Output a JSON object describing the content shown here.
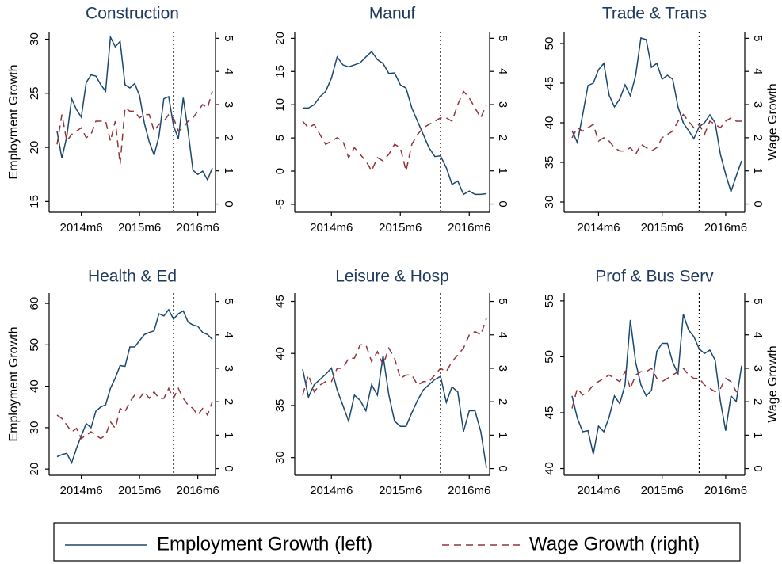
{
  "chart_data": [
    {
      "type": "line",
      "title": "Construction",
      "ylabel": "Employment Growth",
      "x": [
        "2014m1",
        "2014m2",
        "2014m3",
        "2014m4",
        "2014m5",
        "2014m6",
        "2014m7",
        "2014m8",
        "2014m9",
        "2014m10",
        "2014m11",
        "2014m12",
        "2015m1",
        "2015m2",
        "2015m3",
        "2015m4",
        "2015m5",
        "2015m6",
        "2015m7",
        "2015m8",
        "2015m9",
        "2015m10",
        "2015m11",
        "2015m12",
        "2016m1",
        "2016m2",
        "2016m3",
        "2016m4",
        "2016m5",
        "2016m6",
        "2016m7",
        "2016m8",
        "2016m9"
      ],
      "xticks": [
        "2014m6",
        "2015m6",
        "2016m6"
      ],
      "vline": "2016m1",
      "ylim": [
        14,
        30.7
      ],
      "yticks": [
        15,
        20,
        25,
        30
      ],
      "y2lim": [
        -0.25,
        5.2
      ],
      "y2ticks": [
        0,
        1,
        2,
        3,
        4,
        5
      ],
      "series": [
        {
          "name": "Employment Growth (left)",
          "color": "#1a476f",
          "linestyle": "solid",
          "values": [
            21.5,
            19,
            21,
            24.5,
            23.5,
            22.8,
            26,
            26.7,
            26.6,
            25.8,
            25.2,
            30.2,
            29.3,
            29.8,
            25.8,
            25.5,
            25.9,
            24.8,
            22.2,
            20.5,
            19.3,
            21,
            24.5,
            24.7,
            22,
            20.8,
            24.6,
            21.5,
            17.9,
            17.5,
            17.8,
            17,
            18.1
          ]
        },
        {
          "name": "Wage Growth (right)",
          "color": "#90353b",
          "linestyle": "dashed",
          "axis": "y2",
          "values": [
            1.8,
            2.7,
            1.9,
            2.1,
            2.2,
            2.3,
            2.0,
            2.1,
            2.5,
            2.5,
            2.5,
            1.9,
            2.5,
            1.2,
            2.9,
            2.8,
            2.8,
            2.6,
            2.7,
            2.7,
            2.2,
            2.4,
            2.5,
            2.7,
            2.6,
            2.2,
            2.3,
            2.5,
            2.6,
            2.8,
            3.0,
            2.9,
            3.4
          ]
        }
      ]
    },
    {
      "type": "line",
      "title": "Manuf",
      "x": [
        "2014m1",
        "2014m2",
        "2014m3",
        "2014m4",
        "2014m5",
        "2014m6",
        "2014m7",
        "2014m8",
        "2014m9",
        "2014m10",
        "2014m11",
        "2014m12",
        "2015m1",
        "2015m2",
        "2015m3",
        "2015m4",
        "2015m5",
        "2015m6",
        "2015m7",
        "2015m8",
        "2015m9",
        "2015m10",
        "2015m11",
        "2015m12",
        "2016m1",
        "2016m2",
        "2016m3",
        "2016m4",
        "2016m5",
        "2016m6",
        "2016m7",
        "2016m8",
        "2016m9"
      ],
      "xticks": [
        "2014m6",
        "2015m6",
        "2016m6"
      ],
      "vline": "2016m1",
      "ylim": [
        -6.2,
        21
      ],
      "yticks": [
        -5,
        0,
        5,
        10,
        15,
        20
      ],
      "y2lim": [
        -0.25,
        5.2
      ],
      "y2ticks": [
        0,
        1,
        2,
        3,
        4,
        5
      ],
      "series": [
        {
          "color": "#1a476f",
          "linestyle": "solid",
          "values": [
            9.5,
            9.5,
            10,
            11.2,
            12,
            14,
            17.2,
            16,
            15.7,
            16,
            16.3,
            17.2,
            18,
            16.8,
            16.2,
            14.7,
            14.8,
            13,
            12.5,
            9.5,
            7.5,
            5.5,
            3.5,
            2.2,
            2.3,
            0.5,
            -2,
            -1.5,
            -3.5,
            -3,
            -3.5,
            -3.5,
            -3.4
          ]
        },
        {
          "color": "#90353b",
          "linestyle": "dashed",
          "axis": "y2",
          "values": [
            2.5,
            2.3,
            2.4,
            2.1,
            1.8,
            1.9,
            2.0,
            1.9,
            1.4,
            1.7,
            1.5,
            1.3,
            1.0,
            1.4,
            1.3,
            1.5,
            1.8,
            1.7,
            1.0,
            1.8,
            2.1,
            2.3,
            2.4,
            2.5,
            2.6,
            2.6,
            2.5,
            3.0,
            3.4,
            3.2,
            2.9,
            2.6,
            3.0
          ]
        }
      ]
    },
    {
      "type": "line",
      "title": "Trade & Trans",
      "y2label": "Wage Growth",
      "x": [
        "2014m1",
        "2014m2",
        "2014m3",
        "2014m4",
        "2014m5",
        "2014m6",
        "2014m7",
        "2014m8",
        "2014m9",
        "2014m10",
        "2014m11",
        "2014m12",
        "2015m1",
        "2015m2",
        "2015m3",
        "2015m4",
        "2015m5",
        "2015m6",
        "2015m7",
        "2015m8",
        "2015m9",
        "2015m10",
        "2015m11",
        "2015m12",
        "2016m1",
        "2016m2",
        "2016m3",
        "2016m4",
        "2016m5",
        "2016m6",
        "2016m7",
        "2016m8",
        "2016m9"
      ],
      "xticks": [
        "2014m6",
        "2015m6",
        "2016m6"
      ],
      "vline": "2016m1",
      "ylim": [
        28.7,
        51.5
      ],
      "yticks": [
        30,
        35,
        40,
        45,
        50
      ],
      "y2lim": [
        -0.25,
        5.2
      ],
      "y2ticks": [
        0,
        1,
        2,
        3,
        4,
        5
      ],
      "series": [
        {
          "color": "#1a476f",
          "linestyle": "solid",
          "values": [
            39,
            37.5,
            41,
            44.7,
            45,
            46.7,
            47.5,
            43.5,
            42,
            43,
            44.8,
            43.4,
            46,
            50.7,
            50.5,
            47,
            47.5,
            45.5,
            46,
            45.5,
            42,
            40,
            39,
            38,
            39.5,
            40,
            41,
            40,
            36,
            33.5,
            31.3,
            33.3,
            35.2
          ]
        },
        {
          "color": "#90353b",
          "linestyle": "dashed",
          "axis": "y2",
          "values": [
            2.0,
            2.3,
            2.2,
            2.3,
            2.4,
            1.9,
            2.0,
            1.9,
            1.7,
            1.6,
            1.6,
            1.7,
            1.5,
            1.8,
            1.7,
            1.6,
            1.7,
            2.0,
            2.1,
            2.2,
            2.5,
            2.7,
            2.5,
            2.3,
            2.4,
            2.1,
            2.5,
            2.4,
            2.3,
            2.5,
            2.6,
            2.5,
            2.5
          ]
        }
      ]
    },
    {
      "type": "line",
      "title": "Health & Ed",
      "ylabel": "Employment Growth",
      "x": [
        "2014m1",
        "2014m2",
        "2014m3",
        "2014m4",
        "2014m5",
        "2014m6",
        "2014m7",
        "2014m8",
        "2014m9",
        "2014m10",
        "2014m11",
        "2014m12",
        "2015m1",
        "2015m2",
        "2015m3",
        "2015m4",
        "2015m5",
        "2015m6",
        "2015m7",
        "2015m8",
        "2015m9",
        "2015m10",
        "2015m11",
        "2015m12",
        "2016m1",
        "2016m2",
        "2016m3",
        "2016m4",
        "2016m5",
        "2016m6",
        "2016m7",
        "2016m8",
        "2016m9"
      ],
      "xticks": [
        "2014m6",
        "2015m6",
        "2016m6"
      ],
      "vline": "2016m1",
      "ylim": [
        18.5,
        62.5
      ],
      "yticks": [
        20,
        30,
        40,
        50,
        60
      ],
      "y2lim": [
        -0.2,
        5.25
      ],
      "y2ticks": [
        0,
        1,
        2,
        3,
        4,
        5
      ],
      "series": [
        {
          "color": "#1a476f",
          "linestyle": "solid",
          "values": [
            23,
            23.5,
            23.8,
            21.5,
            25,
            28,
            31,
            30,
            34,
            35,
            35.5,
            39.5,
            42,
            45,
            44.8,
            49.5,
            49.5,
            51,
            52.5,
            53,
            53.4,
            57.5,
            57,
            58.5,
            56.2,
            57.5,
            58.2,
            55.5,
            54.8,
            54.5,
            53,
            52.5,
            51.3
          ]
        },
        {
          "color": "#90353b",
          "linestyle": "dashed",
          "axis": "y2",
          "values": [
            1.6,
            1.5,
            1.3,
            1.1,
            1.2,
            0.9,
            1.0,
            1.1,
            1.0,
            0.9,
            1.0,
            1.4,
            1.2,
            1.8,
            1.7,
            2.0,
            2.2,
            2.1,
            2.3,
            2.1,
            2.3,
            2.1,
            2.1,
            2.4,
            2.1,
            2.4,
            2.1,
            1.9,
            1.8,
            1.6,
            1.8,
            1.6,
            2.0
          ]
        }
      ]
    },
    {
      "type": "line",
      "title": "Leisure & Hosp",
      "x": [
        "2014m1",
        "2014m2",
        "2014m3",
        "2014m4",
        "2014m5",
        "2014m6",
        "2014m7",
        "2014m8",
        "2014m9",
        "2014m10",
        "2014m11",
        "2014m12",
        "2015m1",
        "2015m2",
        "2015m3",
        "2015m4",
        "2015m5",
        "2015m6",
        "2015m7",
        "2015m8",
        "2015m9",
        "2015m10",
        "2015m11",
        "2015m12",
        "2016m1",
        "2016m2",
        "2016m3",
        "2016m4",
        "2016m5",
        "2016m6",
        "2016m7",
        "2016m8",
        "2016m9"
      ],
      "xticks": [
        "2014m6",
        "2015m6",
        "2016m6"
      ],
      "vline": "2016m1",
      "ylim": [
        28.3,
        45.8
      ],
      "yticks": [
        30,
        35,
        40,
        45
      ],
      "y2lim": [
        -0.2,
        5.25
      ],
      "y2ticks": [
        0,
        1,
        2,
        3,
        4,
        5
      ],
      "series": [
        {
          "color": "#1a476f",
          "linestyle": "solid",
          "values": [
            38.5,
            35.8,
            37,
            37.5,
            38,
            38.6,
            36.5,
            35,
            33.5,
            36,
            35.5,
            34.5,
            37,
            36,
            39.8,
            36,
            33.5,
            33,
            33,
            34.3,
            35.5,
            36.5,
            37,
            37.5,
            37.8,
            35.3,
            36.8,
            36.3,
            32.5,
            34.5,
            34.5,
            32.5,
            29
          ]
        },
        {
          "color": "#90353b",
          "linestyle": "dashed",
          "axis": "y2",
          "values": [
            2.2,
            2.8,
            2.3,
            2.5,
            2.6,
            2.6,
            3.0,
            3.0,
            3.3,
            3.3,
            3.7,
            3.7,
            3.2,
            3.5,
            3.1,
            3.6,
            3.3,
            2.7,
            2.8,
            2.8,
            2.5,
            2.6,
            2.6,
            2.8,
            3.0,
            2.9,
            3.2,
            3.4,
            3.6,
            4.0,
            4.1,
            4.0,
            4.5
          ]
        }
      ]
    },
    {
      "type": "line",
      "title": "Prof & Bus Serv",
      "y2label": "Wage Growth",
      "x": [
        "2014m1",
        "2014m2",
        "2014m3",
        "2014m4",
        "2014m5",
        "2014m6",
        "2014m7",
        "2014m8",
        "2014m9",
        "2014m10",
        "2014m11",
        "2014m12",
        "2015m1",
        "2015m2",
        "2015m3",
        "2015m4",
        "2015m5",
        "2015m6",
        "2015m7",
        "2015m8",
        "2015m9",
        "2015m10",
        "2015m11",
        "2015m12",
        "2016m1",
        "2016m2",
        "2016m3",
        "2016m4",
        "2016m5",
        "2016m6",
        "2016m7",
        "2016m8",
        "2016m9"
      ],
      "xticks": [
        "2014m6",
        "2015m6",
        "2016m6"
      ],
      "vline": "2016m1",
      "ylim": [
        39.4,
        55.7
      ],
      "yticks": [
        40,
        45,
        50,
        55
      ],
      "y2lim": [
        -0.2,
        5.25
      ],
      "y2ticks": [
        0,
        1,
        2,
        3,
        4,
        5
      ],
      "series": [
        {
          "color": "#1a476f",
          "linestyle": "solid",
          "values": [
            46.5,
            44.5,
            43.3,
            43.4,
            41.3,
            43.8,
            43.3,
            44.6,
            46.5,
            45.8,
            47.5,
            53.3,
            49.5,
            47.5,
            46.5,
            47,
            50.5,
            51.2,
            51.2,
            49.5,
            48.5,
            53.8,
            52.4,
            51.8,
            50.7,
            50.3,
            50.6,
            49.7,
            46,
            43.4,
            46.5,
            46,
            49.2
          ]
        },
        {
          "color": "#90353b",
          "linestyle": "dashed",
          "axis": "y2",
          "values": [
            1.8,
            2.4,
            2.2,
            2.3,
            2.5,
            2.6,
            2.7,
            2.8,
            2.7,
            2.6,
            2.9,
            2.4,
            2.8,
            2.9,
            2.9,
            3.0,
            2.7,
            2.6,
            2.7,
            2.8,
            2.9,
            3.0,
            2.8,
            2.7,
            2.7,
            2.5,
            2.4,
            2.3,
            2.4,
            2.7,
            2.6,
            2.3,
            2.4
          ]
        }
      ]
    }
  ]
}
